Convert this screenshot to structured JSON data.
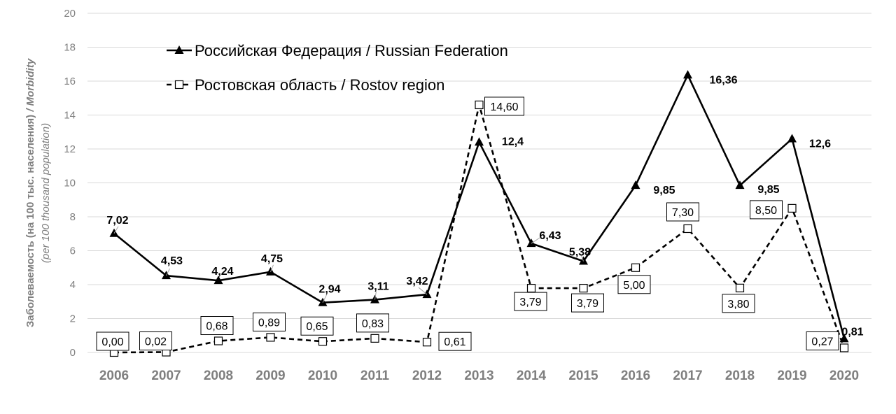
{
  "chart_data": {
    "type": "line",
    "title": "",
    "xlabel": "",
    "ylabel": "Заболеваемость (на 100 тыс. населения)",
    "ylabel_suffix": "/ Morbidity",
    "ylabel_sub": "(per 100 thousand population)",
    "ylim": [
      0,
      20
    ],
    "yticks": [
      "0",
      "2",
      "4",
      "6",
      "8",
      "10",
      "12",
      "14",
      "16",
      "18",
      "20"
    ],
    "grid": true,
    "legend_position": "top-left",
    "categories": [
      "2006",
      "2007",
      "2008",
      "2009",
      "2010",
      "2011",
      "2012",
      "2013",
      "2014",
      "2015",
      "2016",
      "2017",
      "2018",
      "2019",
      "2020"
    ],
    "series": [
      {
        "name": "Российская Федерация / Russian Federation",
        "style": "solid",
        "marker": "filled-triangle",
        "color": "#000000",
        "values": [
          7.02,
          4.53,
          4.24,
          4.75,
          2.94,
          3.11,
          3.42,
          12.4,
          6.43,
          5.38,
          9.85,
          16.36,
          9.85,
          12.6,
          0.81
        ],
        "labels": [
          "7,02",
          "4,53",
          "4,24",
          "4,75",
          "2,94",
          "3,11",
          "3,42",
          "12,4",
          "6,43",
          "5,38",
          "9,85",
          "16,36",
          "9,85",
          "12,6",
          "0,81"
        ]
      },
      {
        "name": "Ростовская область / Rostov region",
        "style": "dashed",
        "marker": "open-square",
        "color": "#000000",
        "values": [
          0.0,
          0.02,
          0.68,
          0.89,
          0.65,
          0.83,
          0.61,
          14.6,
          3.79,
          3.79,
          5.0,
          7.3,
          3.8,
          8.5,
          0.27
        ],
        "labels": [
          "0,00",
          "0,02",
          "0,68",
          "0,89",
          "0,65",
          "0,83",
          "0,61",
          "14,60",
          "3,79",
          "3,79",
          "5,00",
          "7,30",
          "3,80",
          "8,50",
          "0,27"
        ]
      }
    ]
  }
}
